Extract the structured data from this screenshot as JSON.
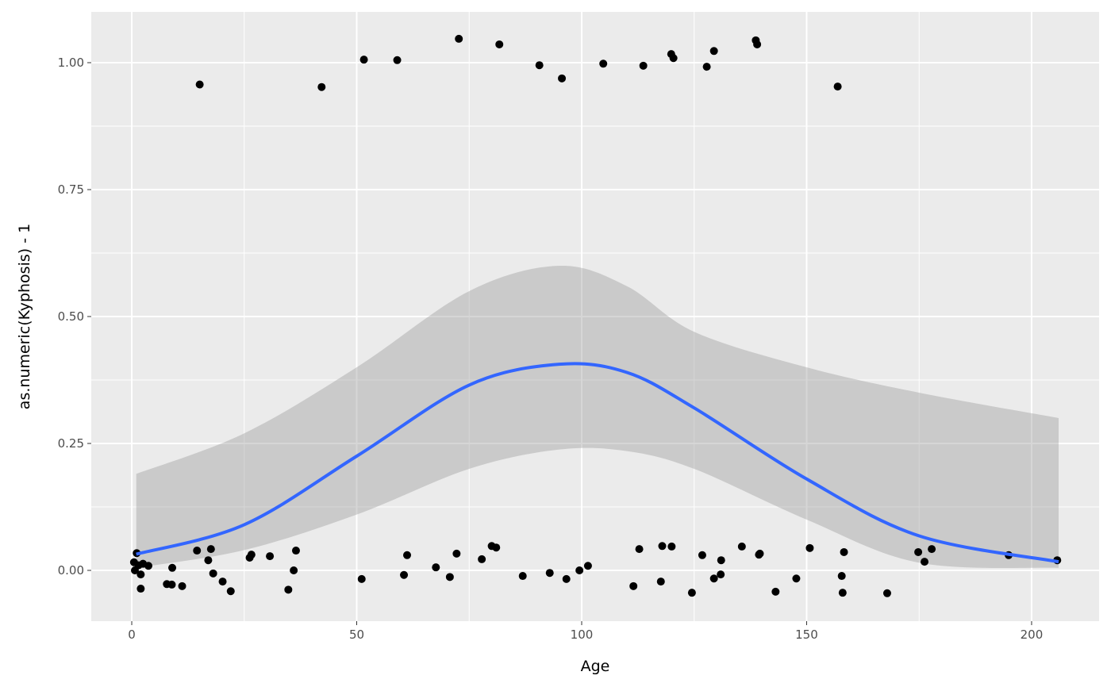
{
  "chart_data": {
    "type": "scatter",
    "xlabel": "Age",
    "ylabel": "as.numeric(Kyphosis) - 1",
    "xlim": [
      -9,
      215
    ],
    "ylim": [
      -0.1,
      1.1
    ],
    "x_ticks": [
      0,
      50,
      100,
      150,
      200
    ],
    "x_tick_labels": [
      "0",
      "50",
      "100",
      "150",
      "200"
    ],
    "y_ticks": [
      0,
      0.25,
      0.5,
      0.75,
      1.0
    ],
    "y_tick_labels": [
      "0.00",
      "0.25",
      "0.50",
      "0.75",
      "1.00"
    ],
    "grid": true,
    "colors": {
      "panel": "#ebebeb",
      "grid": "#ffffff",
      "points": "#000000",
      "smooth": "#3366ff",
      "ribbon": "#999999"
    },
    "points": [
      [
        15.1,
        0.957
      ],
      [
        42.2,
        0.952
      ],
      [
        51.6,
        1.006
      ],
      [
        59.0,
        1.005
      ],
      [
        72.7,
        1.047
      ],
      [
        81.7,
        1.036
      ],
      [
        90.6,
        0.995
      ],
      [
        95.6,
        0.969
      ],
      [
        104.8,
        0.998
      ],
      [
        113.7,
        0.994
      ],
      [
        119.9,
        1.017
      ],
      [
        120.4,
        1.009
      ],
      [
        127.8,
        0.992
      ],
      [
        129.4,
        1.023
      ],
      [
        138.7,
        1.044
      ],
      [
        139.0,
        1.036
      ],
      [
        156.9,
        0.953
      ],
      [
        1.1,
        0.034
      ],
      [
        0.5,
        0.016
      ],
      [
        0.7,
        0.0
      ],
      [
        1.5,
        0.01
      ],
      [
        2.0,
        -0.008
      ],
      [
        2.0,
        -0.036
      ],
      [
        2.5,
        0.013
      ],
      [
        3.7,
        0.009
      ],
      [
        7.8,
        -0.027
      ],
      [
        8.9,
        -0.028
      ],
      [
        9.0,
        0.005
      ],
      [
        11.2,
        -0.031
      ],
      [
        14.5,
        0.039
      ],
      [
        17.0,
        0.02
      ],
      [
        17.6,
        0.042
      ],
      [
        18.1,
        -0.006
      ],
      [
        20.2,
        -0.022
      ],
      [
        22.0,
        -0.041
      ],
      [
        26.2,
        0.025
      ],
      [
        26.6,
        0.031
      ],
      [
        30.7,
        0.028
      ],
      [
        34.8,
        -0.038
      ],
      [
        36.0,
        0.0
      ],
      [
        36.5,
        0.039
      ],
      [
        51.1,
        -0.017
      ],
      [
        60.5,
        -0.009
      ],
      [
        61.2,
        0.03
      ],
      [
        67.6,
        0.006
      ],
      [
        70.7,
        -0.013
      ],
      [
        72.2,
        0.033
      ],
      [
        77.8,
        0.022
      ],
      [
        80.0,
        0.048
      ],
      [
        81.0,
        0.045
      ],
      [
        86.9,
        -0.011
      ],
      [
        92.9,
        -0.005
      ],
      [
        96.6,
        -0.017
      ],
      [
        99.5,
        0.0
      ],
      [
        101.4,
        0.009
      ],
      [
        111.5,
        -0.031
      ],
      [
        112.8,
        0.042
      ],
      [
        117.6,
        -0.022
      ],
      [
        117.9,
        0.048
      ],
      [
        120.0,
        0.047
      ],
      [
        124.5,
        -0.044
      ],
      [
        126.8,
        0.03
      ],
      [
        129.4,
        -0.016
      ],
      [
        130.9,
        -0.008
      ],
      [
        131.0,
        0.02
      ],
      [
        135.6,
        0.047
      ],
      [
        139.4,
        0.031
      ],
      [
        139.6,
        0.033
      ],
      [
        143.1,
        -0.042
      ],
      [
        147.7,
        -0.016
      ],
      [
        150.7,
        0.044
      ],
      [
        157.8,
        -0.011
      ],
      [
        158.0,
        -0.044
      ],
      [
        158.3,
        0.036
      ],
      [
        167.9,
        -0.045
      ],
      [
        174.8,
        0.036
      ],
      [
        176.2,
        0.017
      ],
      [
        177.8,
        0.042
      ],
      [
        194.9,
        0.03
      ],
      [
        205.7,
        0.02
      ]
    ],
    "smooth": {
      "x": [
        1,
        25,
        50,
        75,
        95,
        110,
        125,
        150,
        175,
        206
      ],
      "y": [
        0.032,
        0.09,
        0.225,
        0.365,
        0.406,
        0.39,
        0.32,
        0.18,
        0.068,
        0.017
      ],
      "upper": [
        0.19,
        0.27,
        0.4,
        0.55,
        0.6,
        0.56,
        0.47,
        0.4,
        0.35,
        0.3
      ],
      "lower": [
        0.005,
        0.04,
        0.11,
        0.2,
        0.238,
        0.235,
        0.2,
        0.1,
        0.015,
        0.005
      ]
    }
  }
}
